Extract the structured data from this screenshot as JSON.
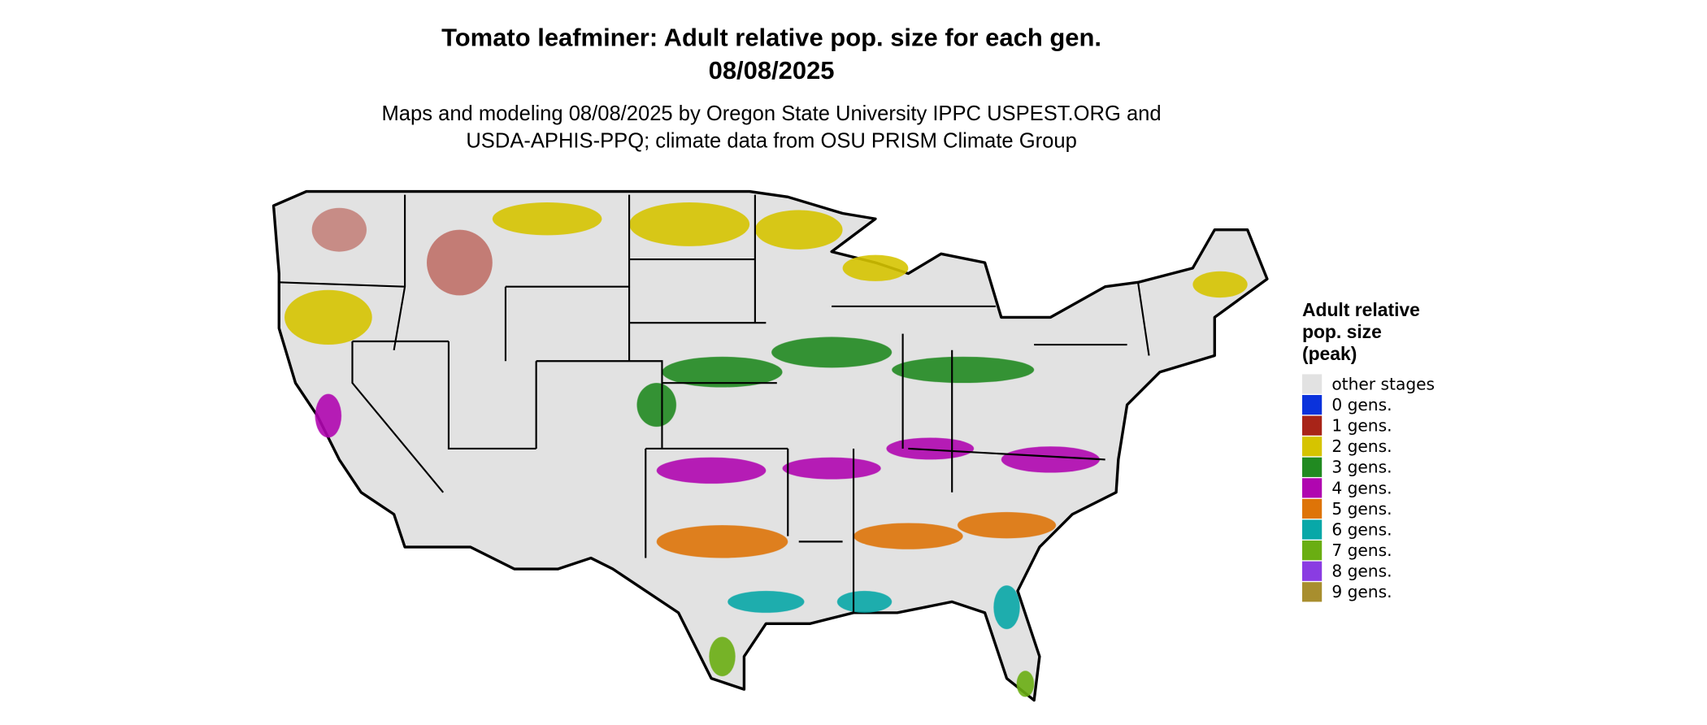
{
  "title": [
    "Tomato leafminer: Adult relative pop. size for each gen.",
    "08/08/2025"
  ],
  "subtitle": [
    "Maps and modeling 08/08/2025 by Oregon State University IPPC USPEST.ORG and",
    "USDA-APHIS-PPQ; climate data from OSU PRISM Climate Group"
  ],
  "legend": {
    "title": [
      "Adult relative",
      "pop. size",
      "(peak)"
    ],
    "items": [
      {
        "label": "other stages",
        "color": "#e2e2e2"
      },
      {
        "label": "0 gens.",
        "color": "#0a32dc"
      },
      {
        "label": "1 gens.",
        "color": "#a82418"
      },
      {
        "label": "2 gens.",
        "color": "#d6c400"
      },
      {
        "label": "3 gens.",
        "color": "#218a21"
      },
      {
        "label": "4 gens.",
        "color": "#b006b0"
      },
      {
        "label": "5 gens.",
        "color": "#de7408"
      },
      {
        "label": "6 gens.",
        "color": "#08a8a8"
      },
      {
        "label": "7 gens.",
        "color": "#6aae12"
      },
      {
        "label": "8 gens.",
        "color": "#8a3ce2"
      },
      {
        "label": "9 gens.",
        "color": "#a88e2e"
      }
    ]
  }
}
